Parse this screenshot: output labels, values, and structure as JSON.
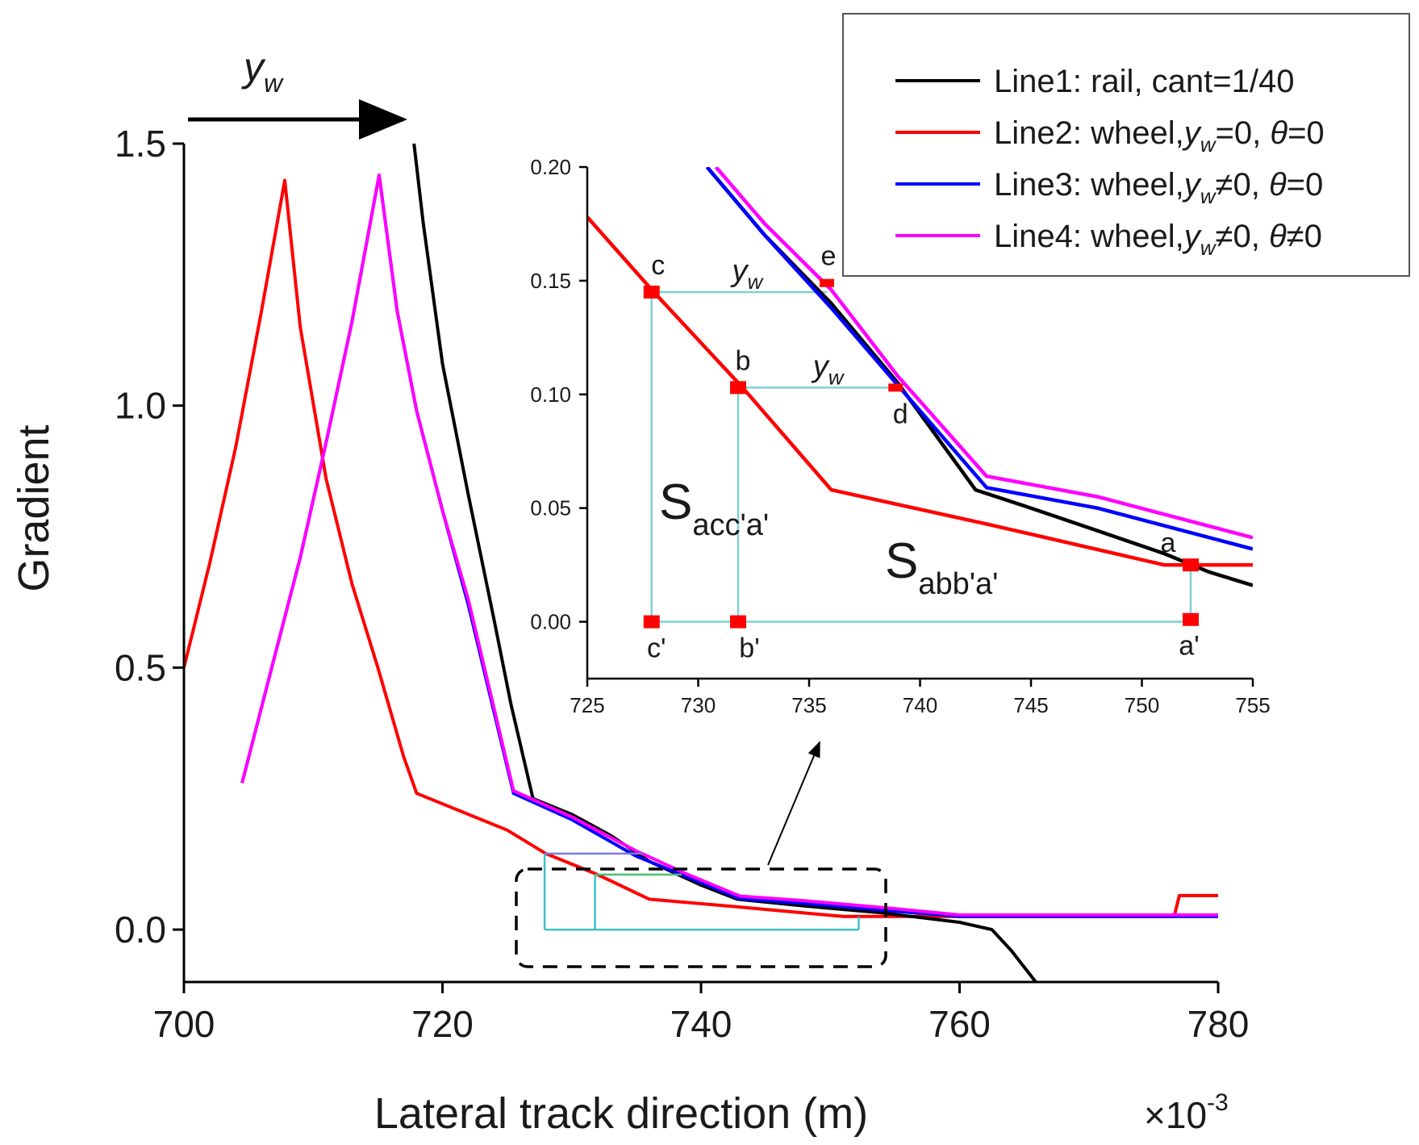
{
  "chart_data": [
    {
      "type": "line",
      "xlabel": "Lateral track direction (m)",
      "x_multiplier": "×10-3",
      "ylabel": "Gradient",
      "xlim": [
        700,
        780
      ],
      "ylim": [
        -0.1,
        1.5
      ],
      "xticks": [
        "700",
        "720",
        "740",
        "760",
        "780"
      ],
      "yticks": [
        "0.0",
        "0.5",
        "1.0",
        "1.5"
      ],
      "shift_annotation": "y_w",
      "legend": {
        "placement": "top-right",
        "entries": [
          {
            "parts": [
              "Line1: rail, cant=1/40"
            ]
          },
          {
            "parts": [
              "Line2: wheel,",
              "y",
              "w",
              "=0, ",
              "θ",
              "=0"
            ]
          },
          {
            "parts": [
              "Line3: wheel,",
              "y",
              "w",
              "≠0, ",
              "θ",
              "=0"
            ]
          },
          {
            "parts": [
              "Line4: wheel,",
              "y",
              "w",
              "≠0, ",
              "θ",
              "≠0"
            ]
          }
        ]
      },
      "series": [
        {
          "name": "Line1",
          "color": "#000000",
          "x": [
            717.8,
            718.5,
            720,
            722,
            724,
            725.3,
            727,
            730,
            733,
            736,
            740,
            742.8,
            748,
            754,
            760,
            762.5,
            764,
            765.9
          ],
          "y": [
            1.5,
            1.35,
            1.08,
            0.83,
            0.59,
            0.43,
            0.25,
            0.22,
            0.18,
            0.13,
            0.085,
            0.058,
            0.045,
            0.032,
            0.014,
            0.0,
            -0.04,
            -0.1
          ]
        },
        {
          "name": "Line2",
          "color": "#ff0000",
          "x": [
            700,
            702,
            704,
            706,
            707.8,
            709,
            711,
            713,
            715,
            717,
            718,
            725,
            728,
            732,
            736,
            743,
            751,
            752,
            765,
            776.6,
            777,
            780
          ],
          "y": [
            0.5,
            0.7,
            0.92,
            1.18,
            1.43,
            1.15,
            0.86,
            0.66,
            0.5,
            0.33,
            0.26,
            0.19,
            0.145,
            0.105,
            0.058,
            0.043,
            0.025,
            0.025,
            0.025,
            0.025,
            0.065,
            0.065
          ]
        },
        {
          "name": "Line3",
          "color": "#0000ff",
          "x": [
            704.5,
            707,
            709,
            711,
            713,
            715.1,
            716.5,
            718,
            720,
            722,
            725.5,
            730,
            735,
            739,
            743,
            748,
            755,
            760,
            780
          ],
          "y": [
            0.28,
            0.52,
            0.71,
            0.93,
            1.16,
            1.44,
            1.18,
            0.99,
            0.8,
            0.62,
            0.26,
            0.21,
            0.14,
            0.1,
            0.059,
            0.05,
            0.035,
            0.025,
            0.025
          ]
        },
        {
          "name": "Line4",
          "color": "#ff00ff",
          "x": [
            704.5,
            707,
            709,
            711,
            713,
            715.1,
            716.5,
            718,
            720,
            722,
            725.5,
            730,
            735,
            739,
            743,
            748,
            755,
            760,
            780
          ],
          "y": [
            0.28,
            0.52,
            0.71,
            0.93,
            1.16,
            1.44,
            1.18,
            0.99,
            0.8,
            0.63,
            0.265,
            0.215,
            0.15,
            0.105,
            0.064,
            0.055,
            0.04,
            0.028,
            0.028
          ]
        }
      ]
    },
    {
      "type": "line",
      "role": "inset",
      "xlim": [
        725,
        755
      ],
      "ylim": [
        -0.025,
        0.2
      ],
      "xticks": [
        "725",
        "730",
        "735",
        "740",
        "745",
        "750",
        "755"
      ],
      "yticks": [
        "0.00",
        "0.05",
        "0.10",
        "0.15",
        "0.20"
      ],
      "series": [
        {
          "name": "Line1",
          "color": "#000000",
          "x": [
            730.4,
            733,
            736,
            739,
            742.5,
            745,
            748,
            751,
            753,
            755
          ],
          "y": [
            0.2,
            0.17,
            0.14,
            0.105,
            0.058,
            0.05,
            0.04,
            0.03,
            0.022,
            0.016
          ]
        },
        {
          "name": "Line2",
          "color": "#ff0000",
          "x": [
            725,
            728,
            732,
            736,
            743,
            751,
            752,
            755
          ],
          "y": [
            0.178,
            0.145,
            0.103,
            0.058,
            0.043,
            0.025,
            0.025,
            0.025
          ]
        },
        {
          "name": "Line3",
          "color": "#0000ff",
          "x": [
            730.4,
            733,
            736,
            739,
            743,
            748,
            755
          ],
          "y": [
            0.2,
            0.17,
            0.138,
            0.104,
            0.059,
            0.05,
            0.032
          ]
        },
        {
          "name": "Line4",
          "color": "#ff00ff",
          "x": [
            730.8,
            733,
            736,
            739,
            743,
            748,
            755
          ],
          "y": [
            0.2,
            0.175,
            0.146,
            0.108,
            0.064,
            0.055,
            0.037
          ]
        }
      ],
      "markers": [
        {
          "label": "a",
          "x": 752.2,
          "y": 0.025
        },
        {
          "label": "a'",
          "x": 752.2,
          "y": 0.001
        },
        {
          "label": "b",
          "x": 731.8,
          "y": 0.103
        },
        {
          "label": "b'",
          "x": 731.8,
          "y": 0.0
        },
        {
          "label": "c",
          "x": 727.9,
          "y": 0.145
        },
        {
          "label": "c'",
          "x": 727.9,
          "y": 0.0
        },
        {
          "label": "d",
          "x": 738.9,
          "y": 0.103
        },
        {
          "label": "e",
          "x": 735.8,
          "y": 0.149
        }
      ],
      "area_labels": [
        {
          "main": "S",
          "sub": "acc'a'"
        },
        {
          "main": "S",
          "sub": "abb'a'"
        }
      ],
      "shift_labels": [
        "y_w",
        "y_w"
      ]
    }
  ]
}
